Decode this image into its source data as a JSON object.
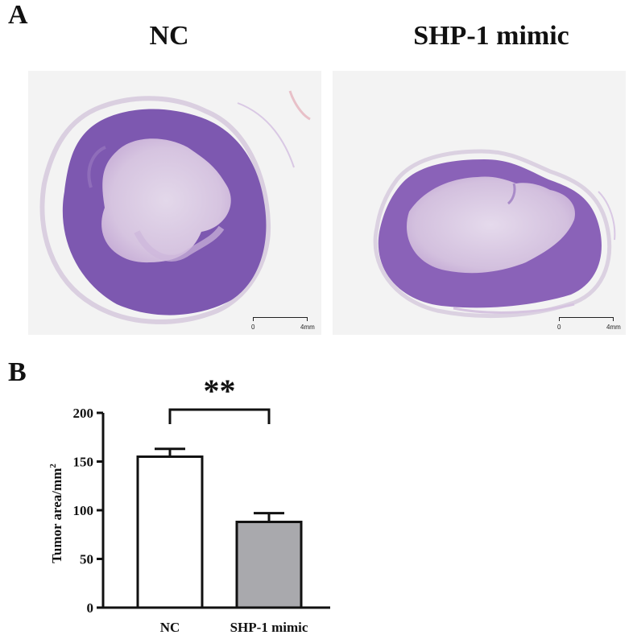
{
  "panel_a": {
    "letter": "A",
    "groups": [
      {
        "title": "NC",
        "scale_start": "0",
        "scale_end": "4mm"
      },
      {
        "title": "SHP-1 mimic",
        "scale_start": "0",
        "scale_end": "4mm"
      }
    ]
  },
  "panel_b": {
    "letter": "B"
  },
  "chart_data": {
    "type": "bar",
    "categories": [
      "NC",
      "SHP-1 mimic"
    ],
    "series": [
      {
        "values": [
          155,
          88
        ],
        "errors": [
          8,
          9
        ],
        "colors": [
          "#ffffff",
          "#a9a9ad"
        ]
      }
    ],
    "ylabel": "Tumor area/mm",
    "ylabel_superscript": "2",
    "ylim": [
      0,
      200
    ],
    "yticks": [
      0,
      50,
      100,
      150,
      200
    ],
    "significance": {
      "label": "**",
      "between": [
        0,
        1
      ]
    },
    "grid": false
  }
}
